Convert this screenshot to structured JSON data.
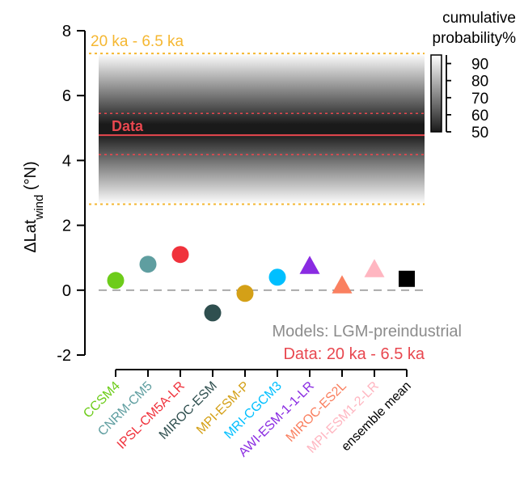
{
  "chart_data": {
    "type": "scatter",
    "ylabel_main": "ΔLat",
    "ylabel_sub": "wind",
    "ylabel_unit": " (°N)",
    "ylim": [
      -2,
      8
    ],
    "yticks": [
      -2,
      0,
      2,
      4,
      6,
      8
    ],
    "ytick_labels": [
      "-2",
      "0",
      "2",
      "4",
      "6",
      "8"
    ],
    "band": {
      "label": "20 ka - 6.5 ka",
      "lower": 2.65,
      "upper": 7.3,
      "color": "#f5b731"
    },
    "data_estimate": {
      "label": "Data",
      "value": 4.78,
      "lower": 4.18,
      "upper": 5.45,
      "color": "#e8474f"
    },
    "zero_line": 0,
    "colorbar": {
      "title_line1": "cumulative",
      "title_line2": "probability%",
      "min": 50,
      "max": 95,
      "ticks": [
        50,
        60,
        70,
        80,
        90
      ],
      "tick_labels": [
        "50",
        "60",
        "70",
        "80",
        "90"
      ]
    },
    "legend": {
      "models_text": "Models: LGM-preindustrial",
      "models_color": "#8c8c8c",
      "data_text": "Data: 20 ka - 6.5 ka",
      "data_color": "#e8474f"
    },
    "models": [
      {
        "name": "CCSM4",
        "value": 0.3,
        "marker": "circle",
        "color": "#6dcc1a"
      },
      {
        "name": "CNRM-CM5",
        "value": 0.8,
        "marker": "circle",
        "color": "#5f9ea0"
      },
      {
        "name": "IPSL-CM5A-LR",
        "value": 1.1,
        "marker": "circle",
        "color": "#f0323c"
      },
      {
        "name": "MIROC-ESM",
        "value": -0.7,
        "marker": "circle",
        "color": "#2f4f4f"
      },
      {
        "name": "MPI-ESM-P",
        "value": -0.1,
        "marker": "circle",
        "color": "#d4a017"
      },
      {
        "name": "MRI-CGCM3",
        "value": 0.4,
        "marker": "circle",
        "color": "#00bfff"
      },
      {
        "name": "AWI-ESM-1-1-LR",
        "value": 0.75,
        "marker": "triangle",
        "color": "#8a2be2"
      },
      {
        "name": "MIROC-ES2L",
        "value": 0.15,
        "marker": "triangle",
        "color": "#fa8060"
      },
      {
        "name": "MPI-ESM1-2-LR",
        "value": 0.65,
        "marker": "triangle",
        "color": "#ffb6c1"
      },
      {
        "name": "ensemble mean",
        "value": 0.35,
        "marker": "square",
        "color": "#000000"
      }
    ]
  }
}
